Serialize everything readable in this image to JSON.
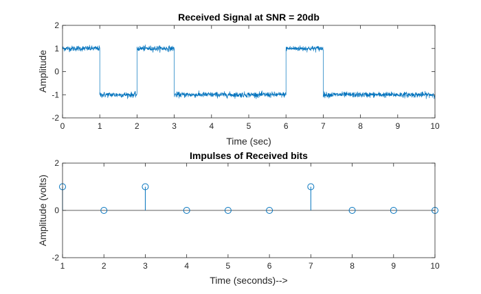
{
  "colors": {
    "series": "#0072bd",
    "axis": "#262626",
    "background": "#ffffff"
  },
  "chart_data": [
    {
      "type": "line",
      "title": "Received Signal at SNR = 20db",
      "xlabel": "Time (sec)",
      "ylabel": "Amplitude",
      "xlim": [
        0,
        10
      ],
      "ylim": [
        -2,
        2
      ],
      "xticks": [
        0,
        1,
        2,
        3,
        4,
        5,
        6,
        7,
        8,
        9,
        10
      ],
      "yticks": [
        -2,
        -1,
        0,
        1,
        2
      ],
      "grid": false,
      "series": [
        {
          "bits": [
            1,
            0,
            1,
            0,
            0,
            0,
            1,
            0,
            0,
            0
          ],
          "levels": {
            "1": 1,
            "0": -1
          },
          "noise_amplitude": 0.1
        }
      ]
    },
    {
      "type": "stem",
      "title": "Impulses of Received bits",
      "xlabel": "Time (seconds)-->",
      "ylabel": "Amplitude (volts)",
      "xlim": [
        1,
        10
      ],
      "ylim": [
        -2,
        2
      ],
      "xticks": [
        1,
        2,
        3,
        4,
        5,
        6,
        7,
        8,
        9,
        10
      ],
      "yticks": [
        -2,
        0,
        2
      ],
      "grid": false,
      "series": [
        {
          "x": [
            1,
            2,
            3,
            4,
            5,
            6,
            7,
            8,
            9,
            10
          ],
          "y": [
            1,
            0,
            1,
            0,
            0,
            0,
            1,
            0,
            0,
            0
          ]
        }
      ]
    }
  ]
}
